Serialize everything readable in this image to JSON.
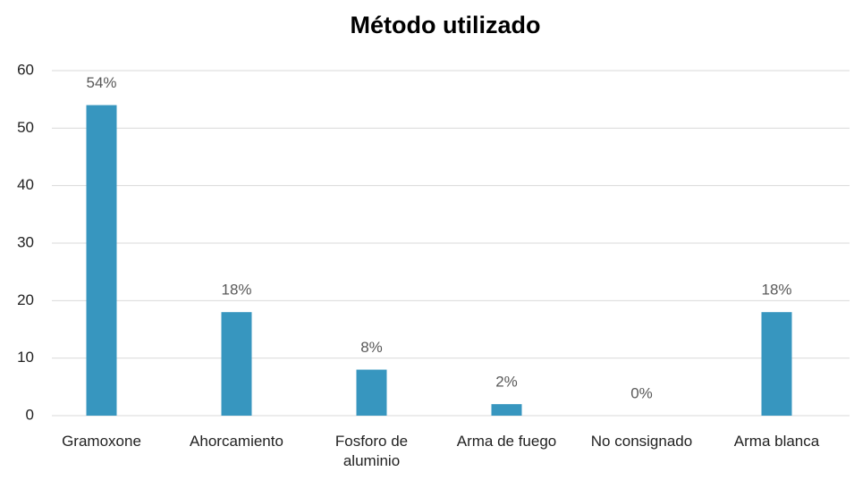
{
  "chart_data": {
    "type": "bar",
    "title": "Método utilizado",
    "categories": [
      "Gramoxone",
      "Ahorcamiento",
      "Fosforo de aluminio",
      "Arma de fuego",
      "No consignado",
      "Arma blanca"
    ],
    "values": [
      54,
      18,
      8,
      2,
      0,
      18
    ],
    "value_labels": [
      "54%",
      "18%",
      "8%",
      "2%",
      "0%",
      "18%"
    ],
    "color": "#3796bf",
    "ylim": [
      0,
      60
    ],
    "yticks": [
      0,
      10,
      20,
      30,
      40,
      50,
      60
    ],
    "grid": true
  }
}
